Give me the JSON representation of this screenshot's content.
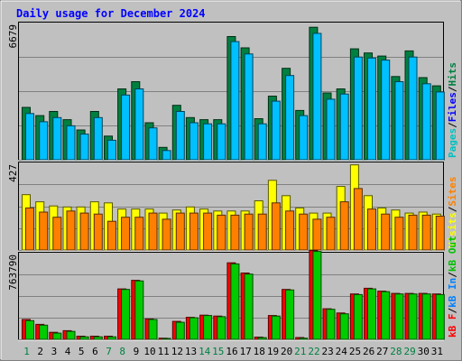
{
  "chart_data": {
    "type": "bar",
    "title": "Daily usage for December 2024",
    "categories": [
      "1",
      "2",
      "3",
      "4",
      "5",
      "6",
      "7",
      "8",
      "9",
      "10",
      "11",
      "12",
      "13",
      "14",
      "15",
      "16",
      "17",
      "18",
      "19",
      "20",
      "21",
      "22",
      "23",
      "24",
      "25",
      "26",
      "27",
      "28",
      "29",
      "30",
      "31"
    ],
    "weekend_categories": [
      "1",
      "7",
      "8",
      "14",
      "15",
      "21",
      "22",
      "28",
      "29"
    ],
    "panels": [
      {
        "name": "hits-files-pages",
        "max_label": "6679",
        "ymax": 6679,
        "legend": [
          "Pages",
          "Files",
          "Hits"
        ],
        "legend_colors": [
          "#00c0c0",
          "#0000ff",
          "#008040"
        ],
        "series": [
          {
            "name": "Hits",
            "color": "#008040",
            "values": [
              2550,
              2150,
              2350,
              1950,
              1450,
              2350,
              1150,
              3450,
              3800,
              1800,
              600,
              2650,
              2050,
              1950,
              1950,
              6000,
              5450,
              2000,
              3100,
              4450,
              2400,
              6450,
              3250,
              3450,
              5400,
              5200,
              5050,
              4050,
              5300,
              4000,
              3600
            ]
          },
          {
            "name": "Files",
            "color": "#00c0ff",
            "values": [
              2250,
              1850,
              2050,
              1650,
              1250,
              2050,
              950,
              3150,
              3450,
              1550,
              450,
              2350,
              1800,
              1750,
              1750,
              5750,
              5150,
              1750,
              2850,
              4100,
              2150,
              6150,
              2950,
              3200,
              5000,
              4950,
              4850,
              3800,
              5000,
              3700,
              3300
            ]
          }
        ]
      },
      {
        "name": "visits-sites",
        "max_label": "427",
        "ymax": 427,
        "legend": [
          "Visits",
          "Sites"
        ],
        "legend_colors": [
          "#ffff00",
          "#ff8000"
        ],
        "series": [
          {
            "name": "Visits",
            "color": "#ffff00",
            "values": [
              270,
              235,
              215,
              210,
              210,
              235,
              230,
              200,
              200,
              200,
              180,
              195,
              210,
              200,
              190,
              190,
              190,
              240,
              340,
              265,
              205,
              180,
              180,
              310,
              415,
              265,
              205,
              195,
              180,
              185,
              175
            ]
          },
          {
            "name": "Sites",
            "color": "#ff8000",
            "values": [
              205,
              185,
              160,
              190,
              180,
              175,
              140,
              160,
              160,
              180,
              150,
              180,
              180,
              180,
              170,
              170,
              175,
              175,
              230,
              190,
              175,
              150,
              160,
              235,
              300,
              200,
              175,
              160,
              170,
              170,
              165
            ]
          }
        ]
      },
      {
        "name": "kbf-kbin-kbout",
        "max_label": "763790",
        "ymax": 763790,
        "legend": [
          "kB F",
          "kB In",
          "kB Out"
        ],
        "legend_colors": [
          "#ff0000",
          "#0080ff",
          "#00c000"
        ],
        "series": [
          {
            "name": "kB F",
            "color": "#ff0000",
            "values": [
              175000,
              132000,
              62000,
              76000,
              28000,
              28000,
              28000,
              445000,
              520000,
              180000,
              10000,
              158000,
              194000,
              213000,
              205000,
              675000,
              585000,
              20000,
              210000,
              440000,
              16000,
              783000,
              270000,
              232000,
              400000,
              450000,
              425000,
              405000,
              405000,
              405000,
              400000
            ]
          },
          {
            "name": "kB Out",
            "color": "#00cc00",
            "values": [
              165000,
              125000,
              55000,
              70000,
              22000,
              22000,
              22000,
              440000,
              515000,
              175000,
              5000,
              150000,
              190000,
              210000,
              200000,
              665000,
              575000,
              15000,
              205000,
              435000,
              10000,
              775000,
              265000,
              225000,
              395000,
              445000,
              420000,
              400000,
              400000,
              400000,
              395000
            ]
          }
        ]
      }
    ]
  }
}
